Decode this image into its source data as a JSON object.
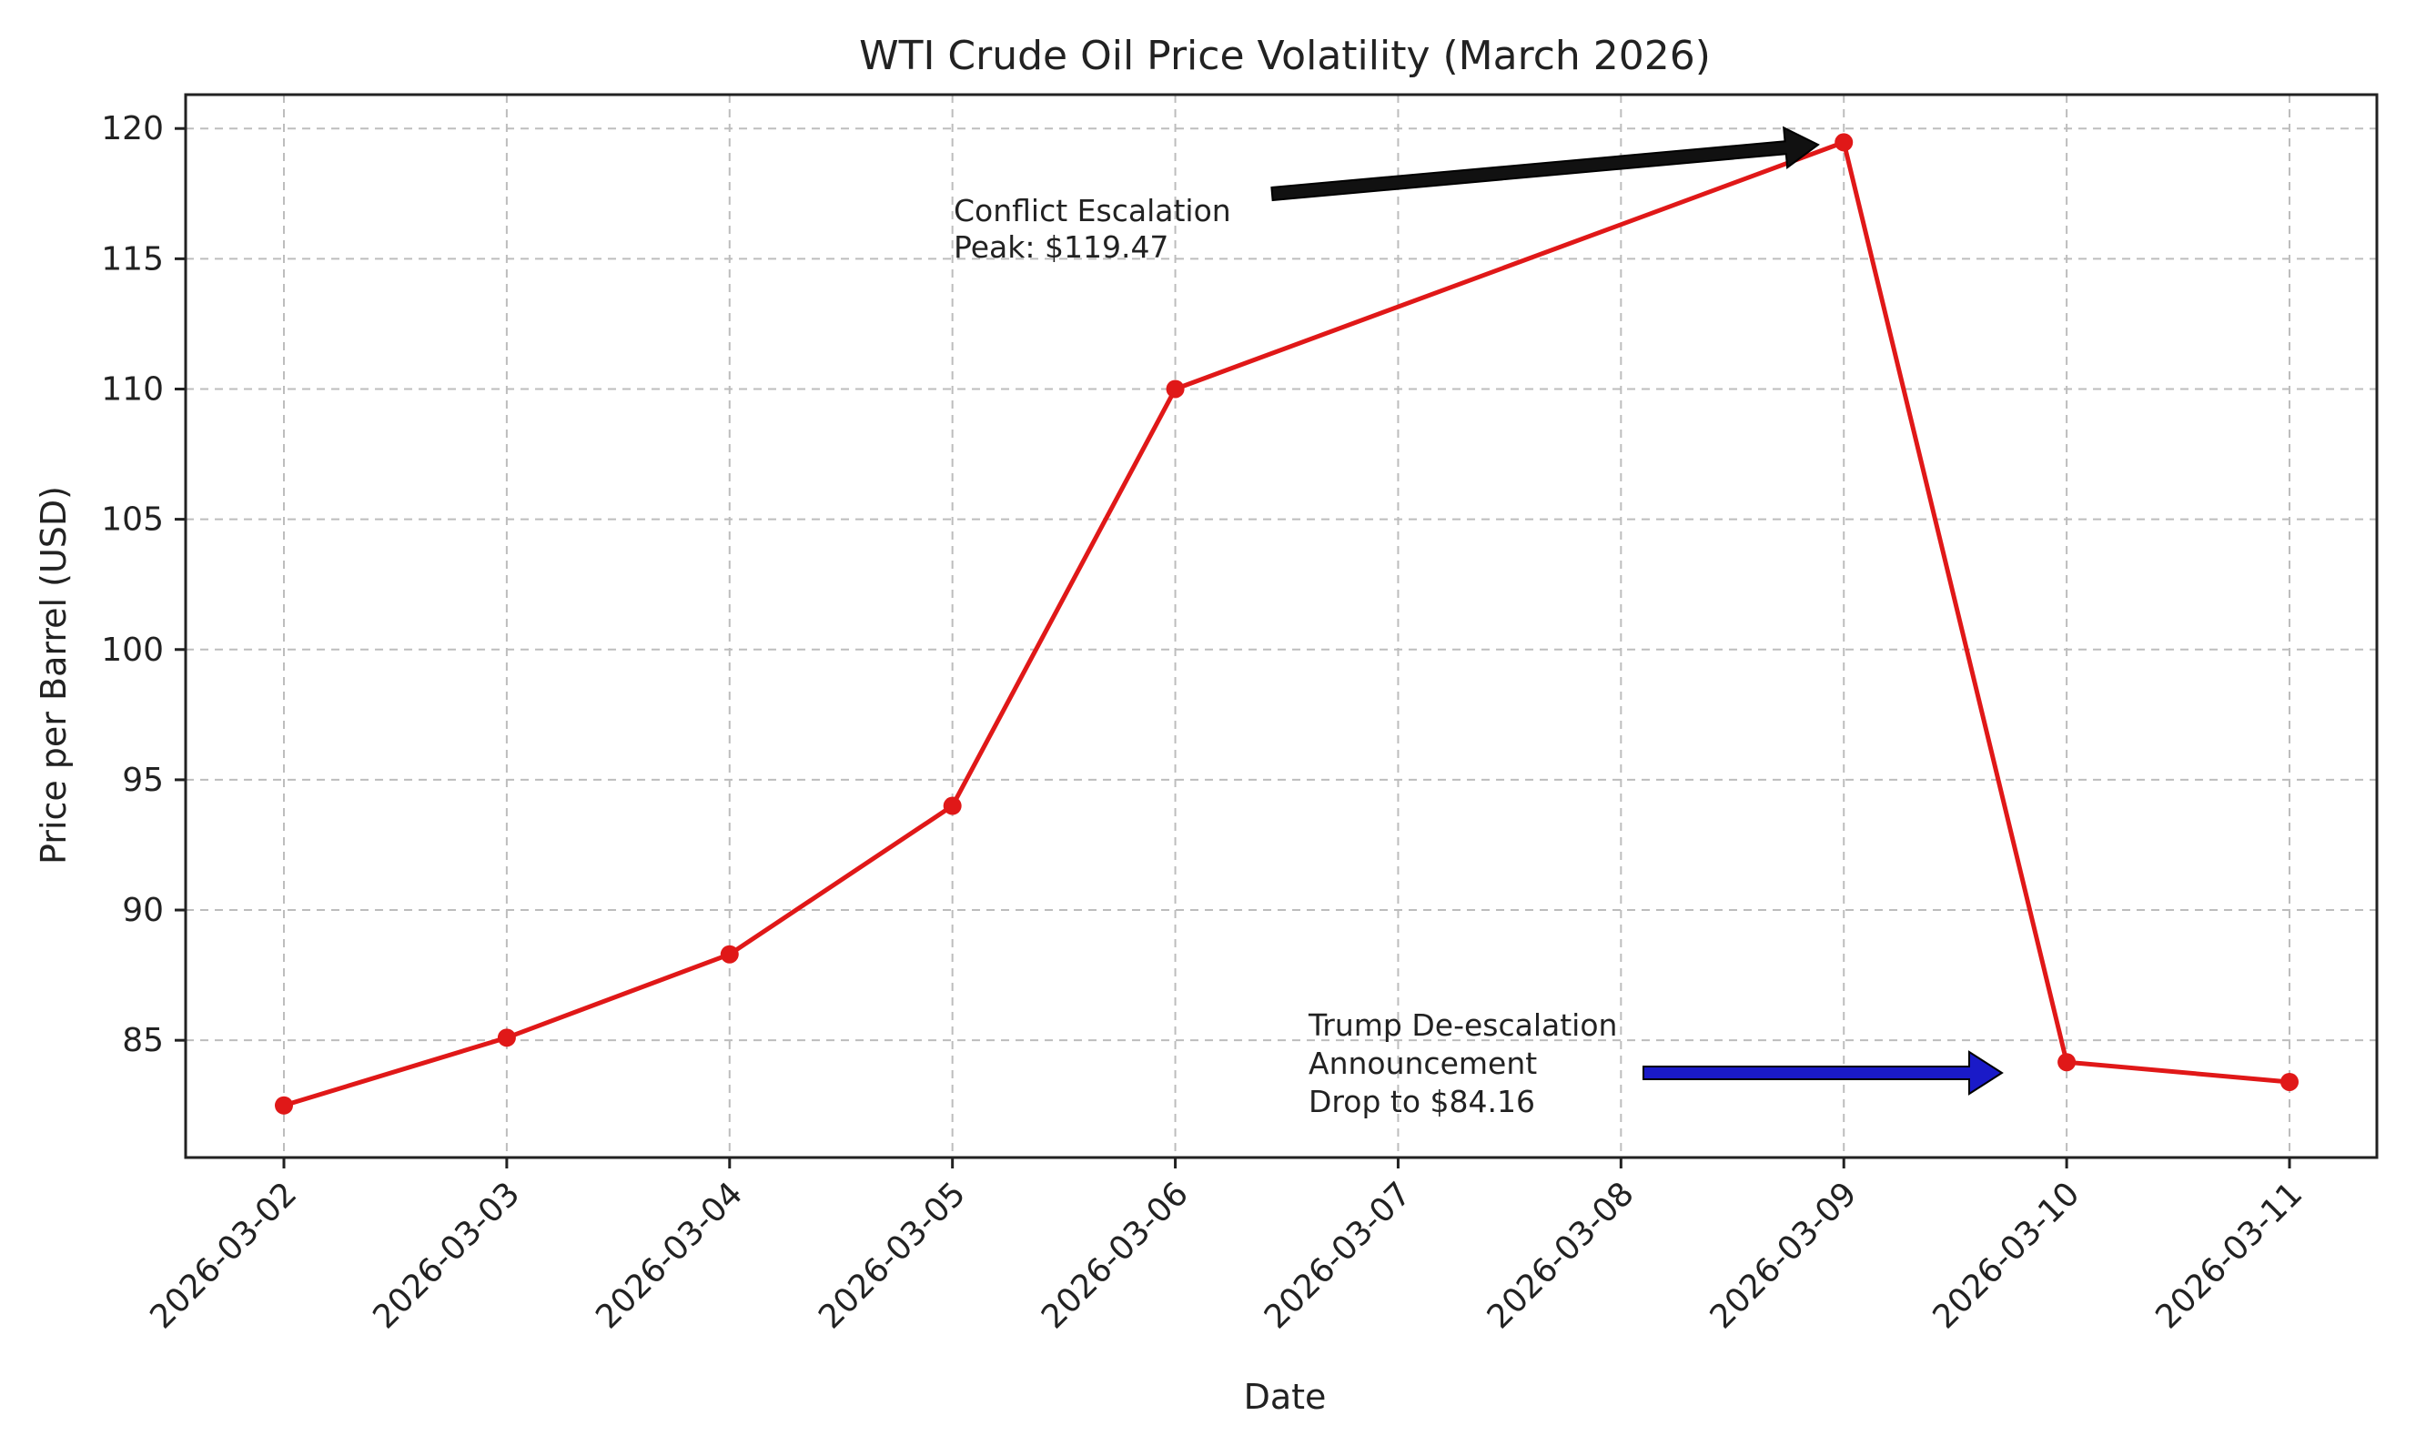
{
  "chart_data": {
    "type": "line",
    "title": "WTI Crude Oil Price Volatility (March 2026)",
    "xlabel": "Date",
    "ylabel": "Price per Barrel (USD)",
    "categories": [
      "2026-03-02",
      "2026-03-03",
      "2026-03-04",
      "2026-03-05",
      "2026-03-06",
      "2026-03-07",
      "2026-03-08",
      "2026-03-09",
      "2026-03-10",
      "2026-03-11"
    ],
    "series": [
      {
        "name": "WTI Crude Oil",
        "color": "#e01818",
        "points": [
          {
            "x": "2026-03-02",
            "y": 82.5
          },
          {
            "x": "2026-03-03",
            "y": 85.1
          },
          {
            "x": "2026-03-04",
            "y": 88.3
          },
          {
            "x": "2026-03-05",
            "y": 94.0
          },
          {
            "x": "2026-03-06",
            "y": 110.0
          },
          {
            "x": "2026-03-09",
            "y": 119.47
          },
          {
            "x": "2026-03-10",
            "y": 84.16
          },
          {
            "x": "2026-03-11",
            "y": 83.4
          }
        ]
      }
    ],
    "ylim": [
      80.5,
      121.3
    ],
    "yticks": [
      85,
      90,
      95,
      100,
      105,
      110,
      115,
      120
    ],
    "grid": true,
    "annotations": [
      {
        "lines": [
          "Conflict Escalation",
          "Peak: $119.47"
        ],
        "target": {
          "x": "2026-03-09",
          "y": 119.47
        },
        "arrow_color": "#111111"
      },
      {
        "lines": [
          "Trump De-escalation",
          "Announcement",
          "Drop to $84.16"
        ],
        "target": {
          "x": "2026-03-10",
          "y": 84.16
        },
        "arrow_color": "#1a1ac8"
      }
    ]
  }
}
